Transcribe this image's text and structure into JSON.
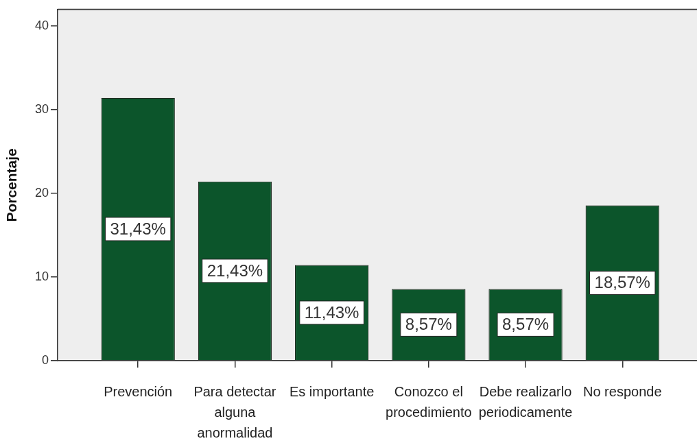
{
  "chart_data": {
    "type": "bar",
    "ylabel": "Porcentaje",
    "categories": [
      "Prevención",
      "Para detectar alguna anormalidad",
      "Es importante",
      "Conozco el procedimiento",
      "Debe realizarlo periodicamente",
      "No responde"
    ],
    "values": [
      31.43,
      21.43,
      11.43,
      8.57,
      8.57,
      18.57
    ],
    "value_labels": [
      "31,43%",
      "21,43%",
      "11,43%",
      "8,57%",
      "8,57%",
      "18,57%"
    ],
    "color": "#0c552b",
    "ylim": [
      0,
      42
    ],
    "yticks": [
      0,
      10,
      20,
      30,
      40
    ]
  }
}
